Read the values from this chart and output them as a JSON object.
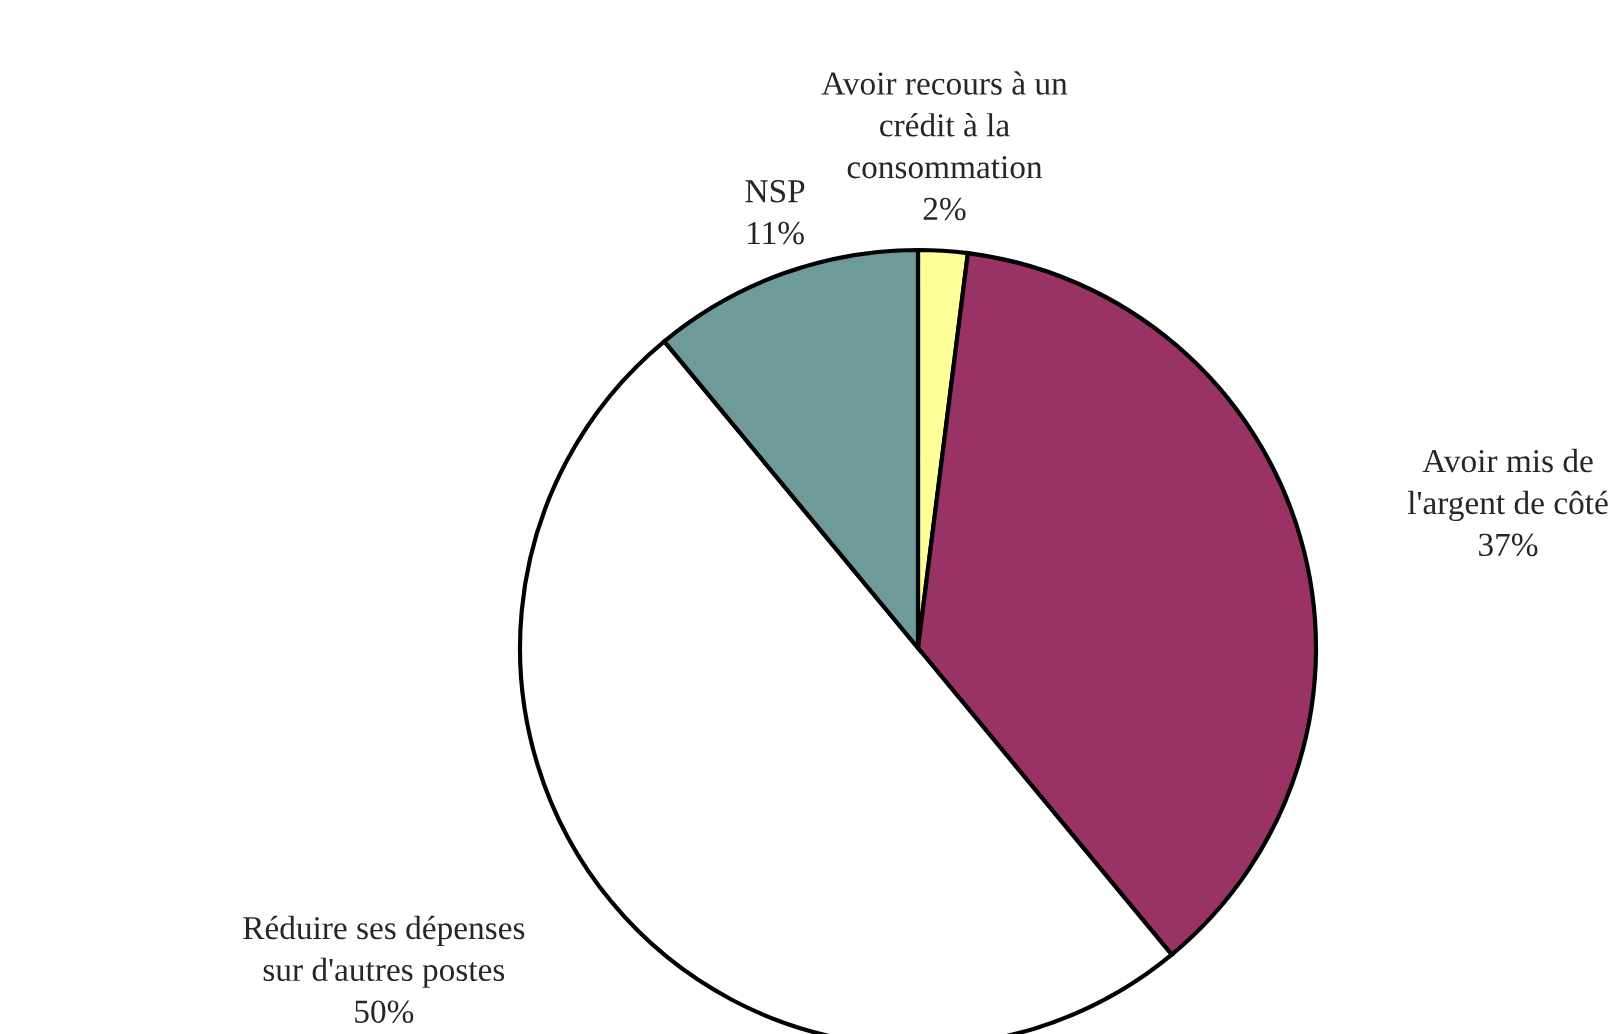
{
  "chart_data": {
    "type": "pie",
    "categories": [
      "Avoir recours à un\ncrédit à la\nconsommation",
      "Avoir mis de\nl'argent de côté",
      "Réduire ses dépenses\nsur d'autres postes",
      "NSP"
    ],
    "values": [
      2,
      37,
      50,
      11
    ],
    "value_labels": [
      "2%",
      "37%",
      "50%",
      "11%"
    ],
    "colors": [
      "#ffff99",
      "#993366",
      "#ffffff",
      "#6f9a9a"
    ],
    "legend": false
  }
}
